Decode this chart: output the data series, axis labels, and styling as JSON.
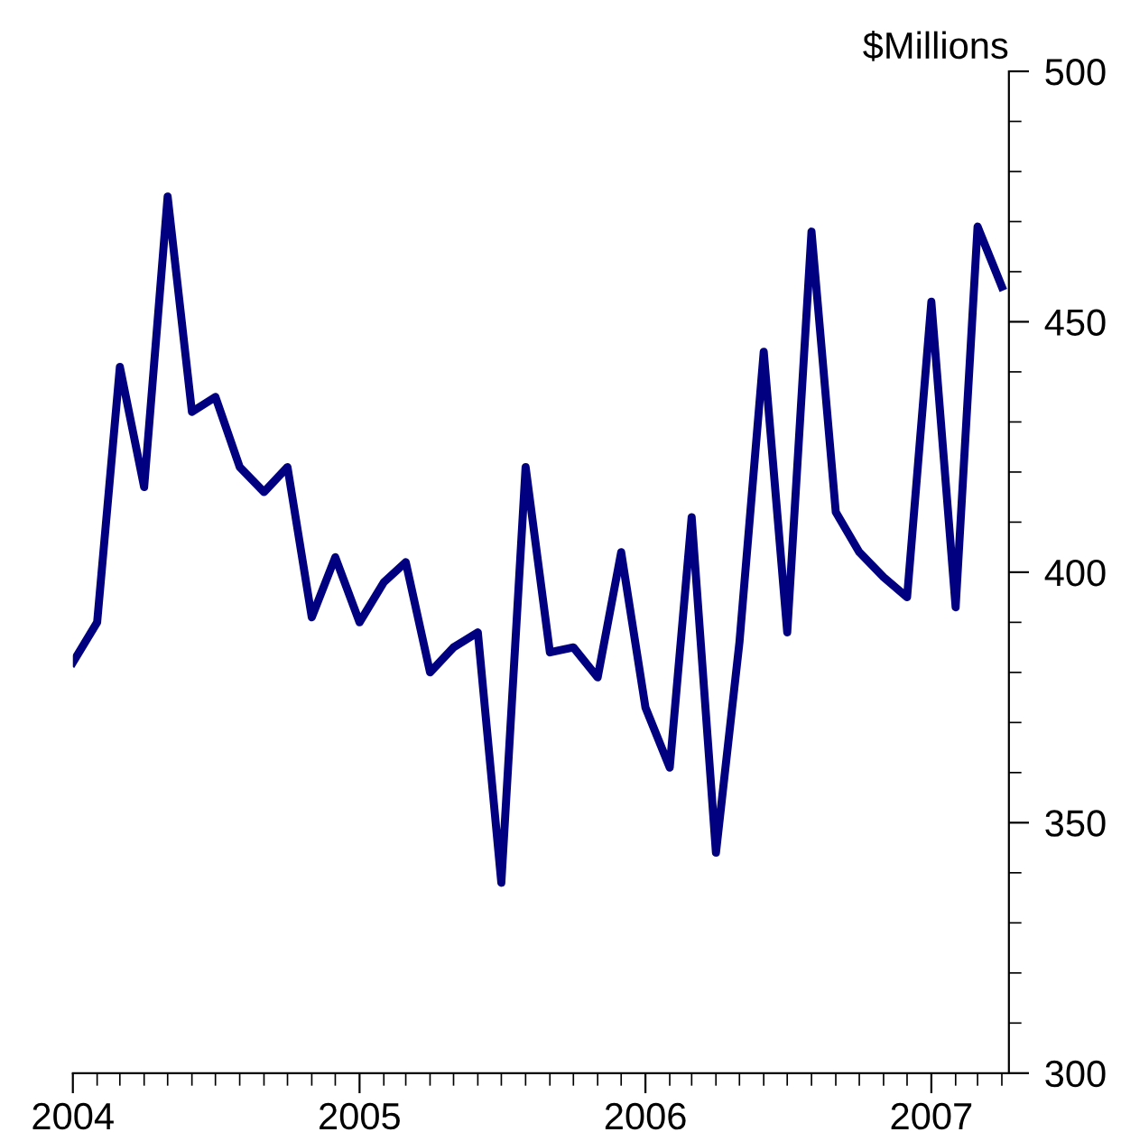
{
  "chart_data": {
    "type": "line",
    "ylabel": "$Millions",
    "x": [
      "2004-01",
      "2004-02",
      "2004-03",
      "2004-04",
      "2004-05",
      "2004-06",
      "2004-07",
      "2004-08",
      "2004-09",
      "2004-10",
      "2004-11",
      "2004-12",
      "2005-01",
      "2005-02",
      "2005-03",
      "2005-04",
      "2005-05",
      "2005-06",
      "2005-07",
      "2005-08",
      "2005-09",
      "2005-10",
      "2005-11",
      "2005-12",
      "2006-01",
      "2006-02",
      "2006-03",
      "2006-04",
      "2006-05",
      "2006-06",
      "2006-07",
      "2006-08",
      "2006-09",
      "2006-10",
      "2006-11",
      "2006-12",
      "2007-01",
      "2007-02",
      "2007-03",
      "2007-04"
    ],
    "series": [
      {
        "color": "#000080",
        "values": [
          382,
          390,
          441,
          417,
          475,
          432,
          435,
          421,
          416,
          421,
          391,
          403,
          390,
          398,
          402,
          380,
          385,
          388,
          338,
          421,
          384,
          385,
          379,
          404,
          373,
          361,
          411,
          344,
          386,
          444,
          388,
          468,
          412,
          404,
          399,
          395,
          454,
          393,
          469,
          457
        ]
      }
    ],
    "xlim": [
      "2004-01-01",
      "2007-04-10"
    ],
    "xticks": [
      {
        "value": "2004-01-01",
        "label": "2004"
      },
      {
        "value": "2005-01-01",
        "label": "2005"
      },
      {
        "value": "2006-01-01",
        "label": "2006"
      },
      {
        "value": "2007-01-01",
        "label": "2007"
      }
    ],
    "ylim": [
      300,
      500
    ],
    "yticks": [
      300,
      350,
      400,
      450,
      500
    ],
    "grid": false,
    "legend": false,
    "marker": "none",
    "line_style": "solid"
  }
}
